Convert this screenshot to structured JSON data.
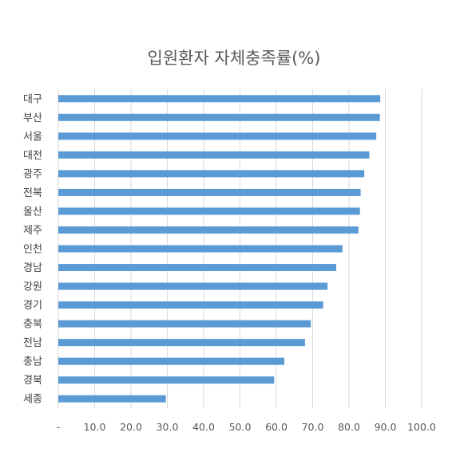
{
  "chart_data": {
    "type": "bar",
    "orientation": "horizontal",
    "title": "입원환자 자체충족률(%)",
    "categories": [
      "대구",
      "부산",
      "서울",
      "대전",
      "광주",
      "전북",
      "울산",
      "제주",
      "인천",
      "경남",
      "강원",
      "경기",
      "충북",
      "전남",
      "충남",
      "경북",
      "세종"
    ],
    "values": [
      88.6,
      88.5,
      87.5,
      85.6,
      84.2,
      83.2,
      83.0,
      82.6,
      78.2,
      76.5,
      74.1,
      72.9,
      69.5,
      67.9,
      62.2,
      59.4,
      29.6
    ],
    "xlim": [
      0,
      100
    ],
    "xticks": [
      "-",
      "10.0",
      "20.0",
      "30.0",
      "40.0",
      "50.0",
      "60.0",
      "70.0",
      "80.0",
      "90.0",
      "100.0"
    ],
    "grid": true,
    "bar_color": "#5b9bd5",
    "legend": "none"
  }
}
